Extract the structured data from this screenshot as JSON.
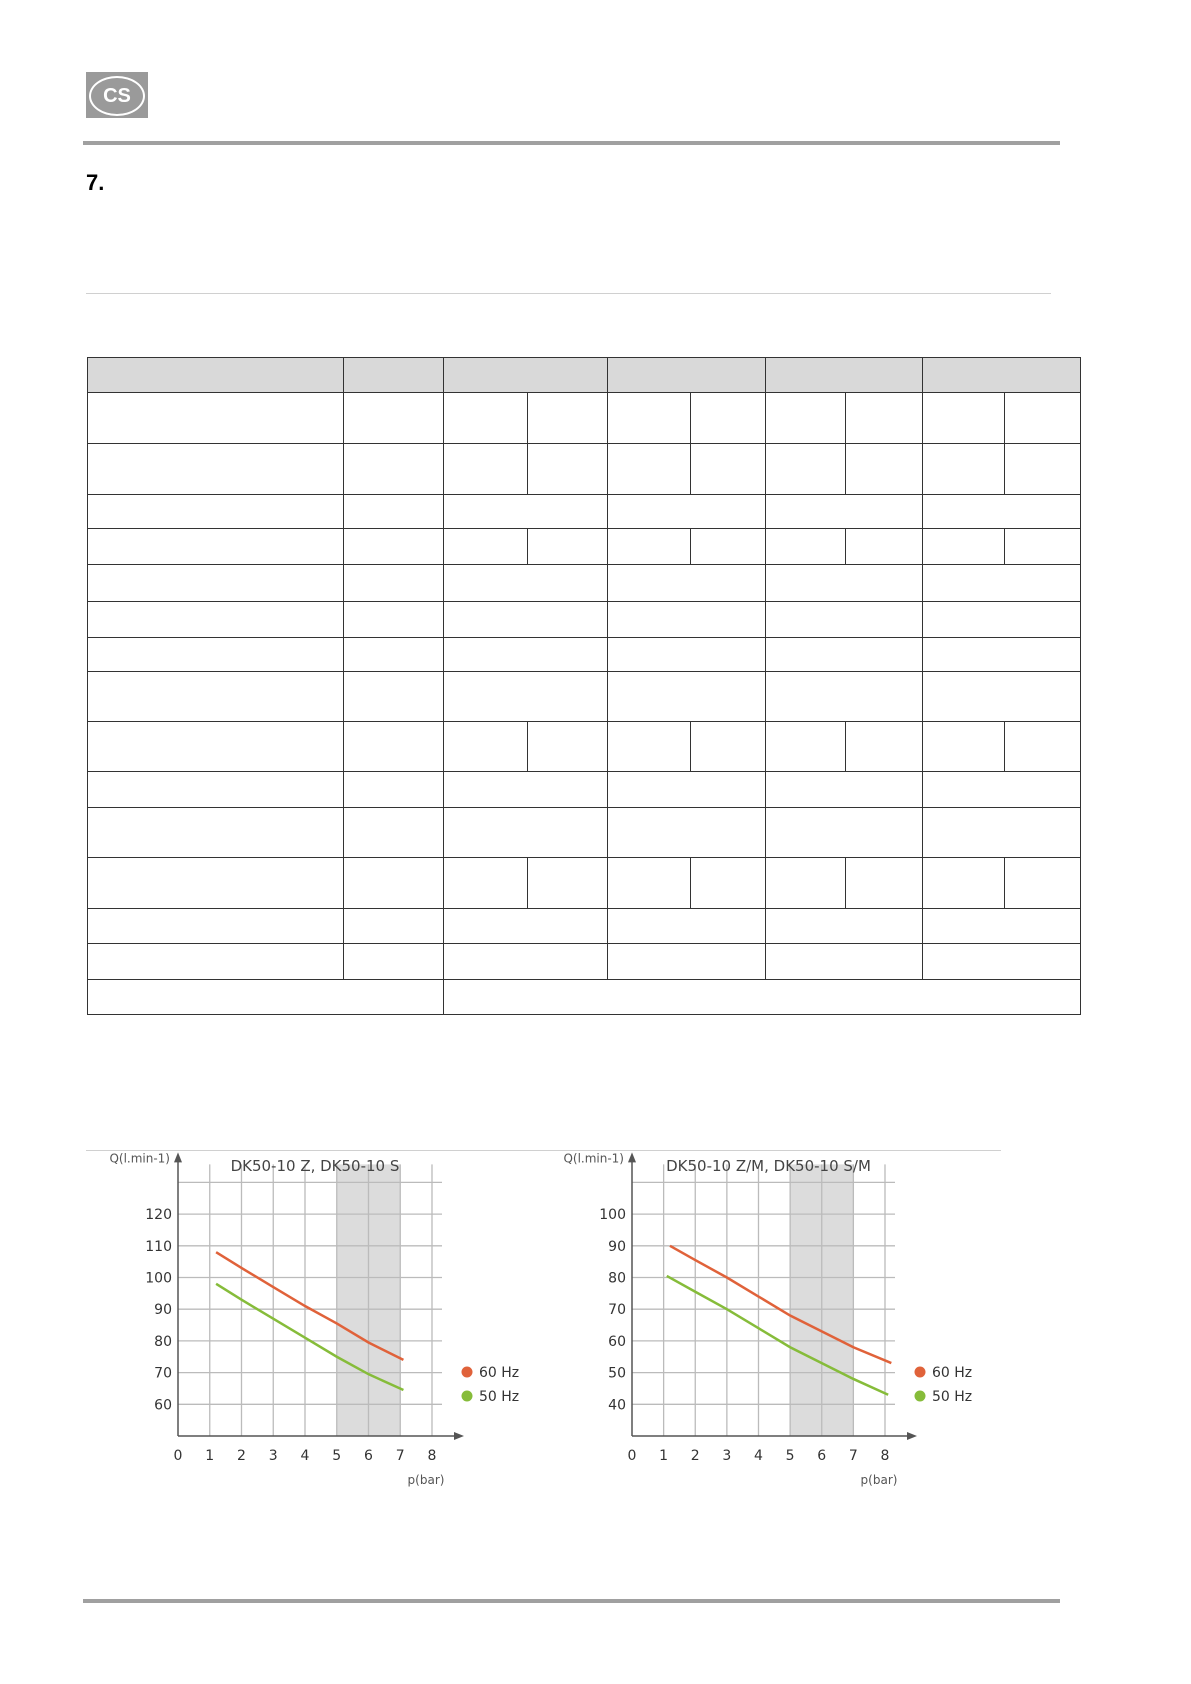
{
  "header": {
    "logo_text": "CS",
    "section_number": "7."
  },
  "colors": {
    "60Hz": "#e0623a",
    "50Hz": "#86bc3a",
    "band": "#dcdcdc"
  },
  "chart_data": [
    {
      "type": "line",
      "title": "DK50-10 Z, DK50-10 S",
      "xlabel": "p(bar)",
      "ylabel": "Q(l.min-1)",
      "ylabel_parts": {
        "base": "Q(l.min",
        "sup": "-1",
        "close": ")"
      },
      "xlim": [
        0,
        8
      ],
      "ylim": [
        50,
        130
      ],
      "xticks": [
        0,
        1,
        2,
        3,
        4,
        5,
        6,
        7,
        8
      ],
      "yticks": [
        60,
        70,
        80,
        90,
        100,
        110,
        120
      ],
      "grid": true,
      "shaded_range": [
        5,
        7
      ],
      "legend": "right",
      "series": [
        {
          "name": "60 Hz",
          "x": [
            1.2,
            2,
            3,
            4,
            5,
            6,
            7.1
          ],
          "y": [
            108,
            103,
            97,
            91,
            85.5,
            79.5,
            74
          ]
        },
        {
          "name": "50 Hz",
          "x": [
            1.2,
            2,
            3,
            4,
            5,
            6,
            7.1
          ],
          "y": [
            98,
            93,
            87,
            81,
            75,
            69.5,
            64.5
          ]
        }
      ]
    },
    {
      "type": "line",
      "title": "DK50-10 Z/M, DK50-10 S/M",
      "xlabel": "p(bar)",
      "ylabel": "Q(l.min-1)",
      "ylabel_parts": {
        "base": "Q(l.min",
        "sup": "-1",
        "close": ")"
      },
      "xlim": [
        0,
        8
      ],
      "ylim": [
        30,
        110
      ],
      "xticks": [
        0,
        1,
        2,
        3,
        4,
        5,
        6,
        7,
        8
      ],
      "yticks": [
        40,
        50,
        60,
        70,
        80,
        90,
        100
      ],
      "grid": true,
      "shaded_range": [
        5,
        7
      ],
      "legend": "right",
      "series": [
        {
          "name": "60 Hz",
          "x": [
            1.2,
            2,
            3,
            4,
            5,
            6,
            7,
            8.2
          ],
          "y": [
            90,
            85.5,
            80,
            74,
            68,
            63,
            58,
            53
          ]
        },
        {
          "name": "50 Hz",
          "x": [
            1.1,
            2,
            3,
            4,
            5,
            6,
            7,
            8.1
          ],
          "y": [
            80.5,
            75.5,
            70,
            64,
            58,
            53,
            48,
            43
          ]
        }
      ]
    }
  ]
}
